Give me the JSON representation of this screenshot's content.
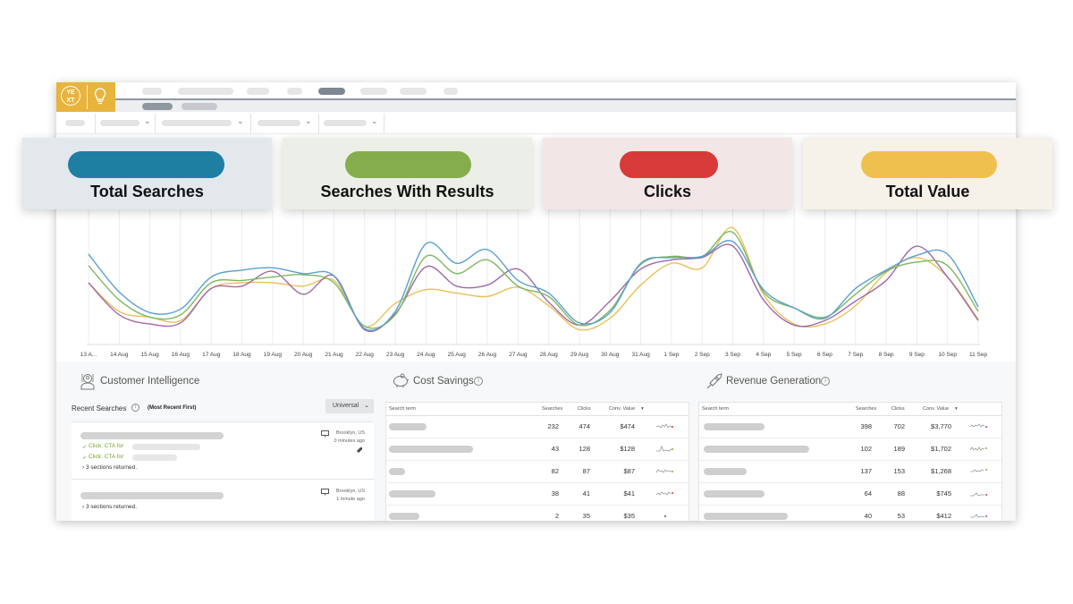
{
  "logo": {
    "text": "YE\nXT"
  },
  "metrics": [
    {
      "label": "Total Searches",
      "color": "#1e7fa3",
      "bg": "#e2e8ec"
    },
    {
      "label": "Searches With Results",
      "color": "#86ad4d",
      "bg": "#ebefe7"
    },
    {
      "label": "Clicks",
      "color": "#d83a3a",
      "bg": "#f2e6e6"
    },
    {
      "label": "Total Value",
      "color": "#f0c04f",
      "bg": "#f6f2ea"
    }
  ],
  "chart_data": {
    "type": "line",
    "x": [
      "13 A...",
      "14 Aug",
      "15 Aug",
      "16 Aug",
      "17 Aug",
      "18 Aug",
      "19 Aug",
      "20 Aug",
      "21 Aug",
      "22 Aug",
      "23 Aug",
      "24 Aug",
      "25 Aug",
      "26 Aug",
      "27 Aug",
      "28 Aug",
      "29 Aug",
      "30 Aug",
      "31 Aug",
      "1 Sep",
      "2 Sep",
      "3 Sep",
      "4 Sep",
      "5 Sep",
      "6 Sep",
      "7 Sep",
      "8 Sep",
      "9 Sep",
      "10 Sep",
      "11 Sep"
    ],
    "series": [
      {
        "color": "#5aa0d0",
        "values": [
          75,
          42,
          24,
          27,
          55,
          61,
          63,
          58,
          56,
          10,
          25,
          84,
          67,
          79,
          52,
          41,
          15,
          24,
          67,
          72,
          73,
          86,
          44,
          28,
          19,
          45,
          61,
          74,
          75,
          29
        ]
      },
      {
        "color": "#7eb861",
        "values": [
          65,
          35,
          20,
          22,
          50,
          52,
          55,
          57,
          50,
          12,
          22,
          73,
          58,
          70,
          47,
          38,
          13,
          26,
          66,
          73,
          73,
          94,
          42,
          28,
          20,
          40,
          60,
          68,
          65,
          25
        ]
      },
      {
        "color": "#a06aa8",
        "values": [
          50,
          22,
          14,
          15,
          45,
          47,
          60,
          40,
          56,
          9,
          23,
          64,
          47,
          48,
          62,
          33,
          13,
          34,
          62,
          70,
          72,
          82,
          35,
          13,
          17,
          34,
          52,
          82,
          55,
          17
        ]
      },
      {
        "color": "#e9c05c",
        "values": [
          50,
          25,
          20,
          17,
          45,
          50,
          50,
          47,
          52,
          12,
          32,
          44,
          41,
          38,
          46,
          30,
          9,
          19,
          48,
          67,
          63,
          98,
          40,
          14,
          14,
          30,
          59,
          72,
          55,
          18
        ]
      }
    ]
  },
  "customer_intelligence": {
    "title": "Customer Intelligence",
    "recent_label": "Recent Searches",
    "recent_sort": "(Most Recent First)",
    "filter_value": "Universal",
    "searches": [
      {
        "location": "Brooklyn, US",
        "time": "0 minutes ago",
        "ctas": [
          "Click: CTA for",
          "Click: CTA for"
        ],
        "sections": "3 sections returned."
      },
      {
        "location": "Brooklyn, US",
        "time": "1 minute ago",
        "ctas": [],
        "sections": "3 sections returned."
      }
    ]
  },
  "cost_savings": {
    "title": "Cost Savings",
    "headers": {
      "term": "Search term",
      "searches": "Searches",
      "clicks": "Clicks",
      "value": "Conv. Value"
    },
    "rows": [
      {
        "searches": "232",
        "clicks": "474",
        "value": "$474"
      },
      {
        "searches": "43",
        "clicks": "128",
        "value": "$128"
      },
      {
        "searches": "82",
        "clicks": "87",
        "value": "$87"
      },
      {
        "searches": "38",
        "clicks": "41",
        "value": "$41"
      },
      {
        "searches": "2",
        "clicks": "35",
        "value": "$35"
      }
    ]
  },
  "revenue_generation": {
    "title": "Revenue Generation",
    "headers": {
      "term": "Search term",
      "searches": "Searches",
      "clicks": "Clicks",
      "value": "Conv. Value"
    },
    "rows": [
      {
        "searches": "398",
        "clicks": "702",
        "value": "$3,770"
      },
      {
        "searches": "102",
        "clicks": "189",
        "value": "$1,702"
      },
      {
        "searches": "137",
        "clicks": "153",
        "value": "$1,268"
      },
      {
        "searches": "64",
        "clicks": "88",
        "value": "$745"
      },
      {
        "searches": "40",
        "clicks": "53",
        "value": "$412"
      }
    ]
  },
  "icons": {
    "logo": "yext-logo",
    "app": "lightbulb-icon",
    "customer": "customer-intelligence-icon",
    "cost": "piggy-bank-icon",
    "revenue": "rocket-icon",
    "info": "info-icon",
    "monitor": "monitor-icon",
    "chevron": "chevron-down-icon"
  }
}
